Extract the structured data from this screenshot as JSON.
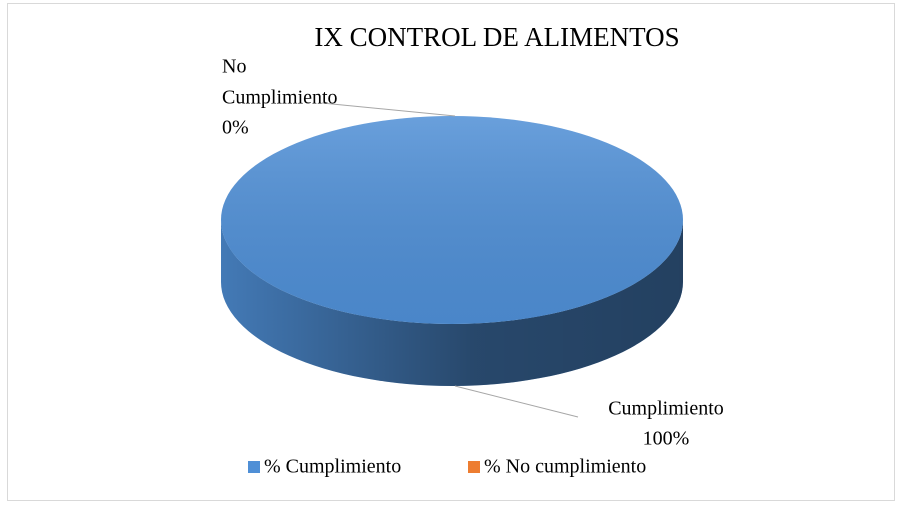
{
  "chart_data": {
    "type": "pie3d",
    "title": "IX  CONTROL DE ALIMENTOS",
    "categories": [
      "% Cumplimiento",
      "% No cumplimiento"
    ],
    "values": [
      100,
      0
    ],
    "value_labels": [
      "100%",
      "0%"
    ],
    "label_names": [
      [
        "Cumplimiento"
      ],
      [
        "No",
        "Cumplimiento"
      ]
    ],
    "colors": [
      "#4f8fd6",
      "#ed7d31"
    ],
    "legend": "bottom"
  }
}
